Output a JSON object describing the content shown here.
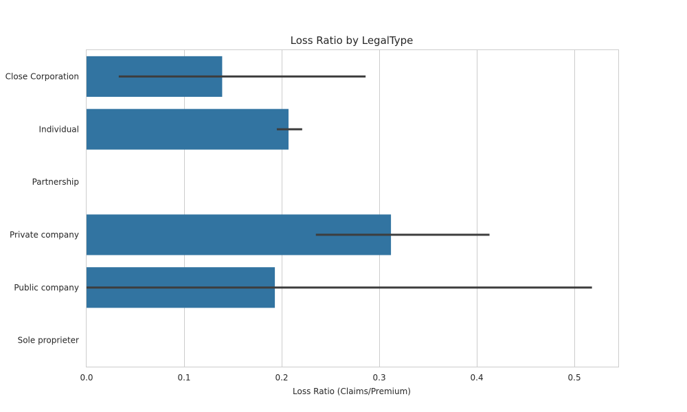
{
  "chart_data": {
    "type": "bar",
    "orientation": "horizontal",
    "title": "Loss Ratio by LegalType",
    "xlabel": "Loss Ratio (Claims/Premium)",
    "ylabel": "",
    "xlim": [
      0,
      0.545
    ],
    "xticks": [
      0.0,
      0.1,
      0.2,
      0.3,
      0.4,
      0.5
    ],
    "xtick_labels": [
      "0.0",
      "0.1",
      "0.2",
      "0.3",
      "0.4",
      "0.5"
    ],
    "grid": "vertical",
    "bar_color": "#3274a1",
    "errorbar_color": "#3d3d3d",
    "categories": [
      "Close Corporation",
      "Individual",
      "Partnership",
      "Private company",
      "Public company",
      "Sole proprieter"
    ],
    "values": [
      0.139,
      0.207,
      null,
      0.312,
      0.193,
      null
    ],
    "error_low": [
      0.033,
      0.195,
      null,
      0.235,
      0.0,
      null
    ],
    "error_high": [
      0.286,
      0.221,
      null,
      0.413,
      0.518,
      null
    ]
  }
}
